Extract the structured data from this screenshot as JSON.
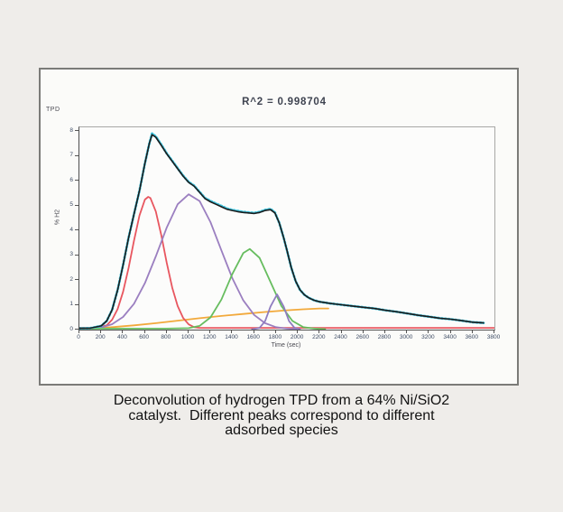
{
  "figure": {
    "corner_label": "TPD",
    "title": "R^2 = 0.998704"
  },
  "caption": {
    "lines": [
      "Deconvolution of hydrogen TPD from a 64% Ni/SiO2",
      "catalyst.  Different peaks correspond to different",
      "adsorbed species"
    ]
  },
  "chart_data": {
    "type": "line",
    "title": "R^2 = 0.998704",
    "xlabel": "Time (sec)",
    "ylabel": "% H2",
    "xlim": [
      0,
      3800
    ],
    "ylim": [
      0,
      8.15
    ],
    "grid": false,
    "legend": "none",
    "x_ticks": [
      0,
      200,
      400,
      600,
      800,
      1000,
      1200,
      1400,
      1600,
      1800,
      2000,
      2200,
      2400,
      2600,
      2800,
      3000,
      3200,
      3400,
      3600,
      3800
    ],
    "y_ticks": [
      0,
      1,
      2,
      3,
      4,
      5,
      6,
      7,
      8
    ],
    "series": [
      {
        "name": "background-orange",
        "color": "#f2a93b",
        "style": "solid",
        "width": 1.8,
        "points": [
          [
            100,
            0.03
          ],
          [
            300,
            0.1
          ],
          [
            500,
            0.17
          ],
          [
            700,
            0.26
          ],
          [
            900,
            0.36
          ],
          [
            1100,
            0.46
          ],
          [
            1300,
            0.55
          ],
          [
            1500,
            0.63
          ],
          [
            1700,
            0.71
          ],
          [
            1900,
            0.78
          ],
          [
            2050,
            0.82
          ],
          [
            2200,
            0.85
          ],
          [
            2280,
            0.85
          ]
        ]
      },
      {
        "name": "peak1-red",
        "color": "#e8565f",
        "style": "solid",
        "width": 1.8,
        "points": [
          [
            0,
            0.07
          ],
          [
            150,
            0.07
          ],
          [
            250,
            0.17
          ],
          [
            300,
            0.4
          ],
          [
            350,
            0.83
          ],
          [
            400,
            1.52
          ],
          [
            450,
            2.48
          ],
          [
            500,
            3.58
          ],
          [
            550,
            4.6
          ],
          [
            600,
            5.24
          ],
          [
            630,
            5.35
          ],
          [
            650,
            5.3
          ],
          [
            700,
            4.76
          ],
          [
            750,
            3.8
          ],
          [
            800,
            2.69
          ],
          [
            850,
            1.69
          ],
          [
            900,
            0.95
          ],
          [
            950,
            0.47
          ],
          [
            1000,
            0.21
          ],
          [
            1050,
            0.1
          ],
          [
            1100,
            0.07
          ],
          [
            1400,
            0.07
          ],
          [
            1800,
            0.07
          ],
          [
            2200,
            0.07
          ],
          [
            2600,
            0.07
          ],
          [
            3000,
            0.07
          ],
          [
            3400,
            0.07
          ],
          [
            3800,
            0.07
          ]
        ]
      },
      {
        "name": "peak2-purple",
        "color": "#9b7fc0",
        "style": "solid",
        "width": 1.8,
        "points": [
          [
            150,
            0.05
          ],
          [
            200,
            0.08
          ],
          [
            300,
            0.22
          ],
          [
            400,
            0.51
          ],
          [
            500,
            1.04
          ],
          [
            600,
            1.87
          ],
          [
            700,
            2.95
          ],
          [
            800,
            4.11
          ],
          [
            900,
            5.05
          ],
          [
            1000,
            5.45
          ],
          [
            1100,
            5.18
          ],
          [
            1200,
            4.33
          ],
          [
            1300,
            3.19
          ],
          [
            1400,
            2.07
          ],
          [
            1500,
            1.18
          ],
          [
            1600,
            0.59
          ],
          [
            1700,
            0.26
          ],
          [
            1800,
            0.1
          ],
          [
            1900,
            0.04
          ],
          [
            2000,
            0.02
          ]
        ]
      },
      {
        "name": "peak3-green",
        "color": "#67bd5f",
        "style": "solid",
        "width": 1.8,
        "points": [
          [
            0,
            0.04
          ],
          [
            400,
            0.04
          ],
          [
            800,
            0.04
          ],
          [
            1000,
            0.06
          ],
          [
            1100,
            0.15
          ],
          [
            1200,
            0.49
          ],
          [
            1300,
            1.21
          ],
          [
            1400,
            2.24
          ],
          [
            1500,
            3.08
          ],
          [
            1560,
            3.25
          ],
          [
            1650,
            2.89
          ],
          [
            1750,
            1.92
          ],
          [
            1850,
            0.95
          ],
          [
            1950,
            0.35
          ],
          [
            2050,
            0.1
          ],
          [
            2150,
            0.04
          ],
          [
            2250,
            0.02
          ]
        ]
      },
      {
        "name": "peak4-small-purple",
        "color": "#8f7cc0",
        "style": "solid",
        "width": 1.8,
        "points": [
          [
            1580,
            0.01
          ],
          [
            1650,
            0.07
          ],
          [
            1700,
            0.34
          ],
          [
            1750,
            0.93
          ],
          [
            1810,
            1.42
          ],
          [
            1870,
            0.93
          ],
          [
            1920,
            0.34
          ],
          [
            1970,
            0.07
          ],
          [
            2020,
            0.02
          ]
        ]
      },
      {
        "name": "measured-data-cyan",
        "color": "#3cc3dd",
        "style": "dotted",
        "width": 2.8,
        "points": [
          [
            0,
            0.05
          ],
          [
            100,
            0.06
          ],
          [
            200,
            0.15
          ],
          [
            250,
            0.35
          ],
          [
            300,
            0.8
          ],
          [
            350,
            1.6
          ],
          [
            400,
            2.6
          ],
          [
            450,
            3.7
          ],
          [
            500,
            4.65
          ],
          [
            550,
            5.6
          ],
          [
            600,
            6.7
          ],
          [
            640,
            7.5
          ],
          [
            665,
            7.9
          ],
          [
            700,
            7.78
          ],
          [
            750,
            7.45
          ],
          [
            800,
            7.1
          ],
          [
            850,
            6.8
          ],
          [
            900,
            6.5
          ],
          [
            950,
            6.2
          ],
          [
            1000,
            5.95
          ],
          [
            1050,
            5.8
          ],
          [
            1100,
            5.55
          ],
          [
            1150,
            5.3
          ],
          [
            1200,
            5.18
          ],
          [
            1250,
            5.08
          ],
          [
            1300,
            4.98
          ],
          [
            1350,
            4.88
          ],
          [
            1400,
            4.82
          ],
          [
            1450,
            4.78
          ],
          [
            1500,
            4.74
          ],
          [
            1550,
            4.72
          ],
          [
            1600,
            4.7
          ],
          [
            1650,
            4.74
          ],
          [
            1700,
            4.82
          ],
          [
            1750,
            4.86
          ],
          [
            1790,
            4.72
          ],
          [
            1830,
            4.3
          ],
          [
            1870,
            3.7
          ],
          [
            1900,
            3.2
          ],
          [
            1940,
            2.5
          ],
          [
            1980,
            1.95
          ],
          [
            2020,
            1.6
          ],
          [
            2060,
            1.4
          ],
          [
            2100,
            1.28
          ],
          [
            2150,
            1.18
          ],
          [
            2200,
            1.12
          ],
          [
            2300,
            1.05
          ],
          [
            2400,
            1.0
          ],
          [
            2500,
            0.95
          ],
          [
            2600,
            0.9
          ],
          [
            2700,
            0.85
          ],
          [
            2800,
            0.78
          ],
          [
            2900,
            0.72
          ],
          [
            3000,
            0.65
          ],
          [
            3100,
            0.58
          ],
          [
            3200,
            0.52
          ],
          [
            3300,
            0.46
          ],
          [
            3400,
            0.42
          ],
          [
            3500,
            0.36
          ],
          [
            3600,
            0.3
          ],
          [
            3700,
            0.27
          ]
        ]
      },
      {
        "name": "overall-fit-black",
        "color": "#1b1b1b",
        "style": "solid",
        "width": 1.6,
        "points": [
          [
            0,
            0.05
          ],
          [
            100,
            0.06
          ],
          [
            200,
            0.15
          ],
          [
            250,
            0.35
          ],
          [
            300,
            0.8
          ],
          [
            350,
            1.6
          ],
          [
            400,
            2.6
          ],
          [
            450,
            3.7
          ],
          [
            500,
            4.65
          ],
          [
            550,
            5.6
          ],
          [
            600,
            6.7
          ],
          [
            640,
            7.5
          ],
          [
            665,
            7.85
          ],
          [
            700,
            7.75
          ],
          [
            750,
            7.42
          ],
          [
            800,
            7.08
          ],
          [
            850,
            6.78
          ],
          [
            900,
            6.48
          ],
          [
            950,
            6.18
          ],
          [
            1000,
            5.93
          ],
          [
            1050,
            5.78
          ],
          [
            1100,
            5.53
          ],
          [
            1150,
            5.28
          ],
          [
            1200,
            5.15
          ],
          [
            1250,
            5.05
          ],
          [
            1300,
            4.95
          ],
          [
            1350,
            4.85
          ],
          [
            1400,
            4.8
          ],
          [
            1450,
            4.75
          ],
          [
            1500,
            4.72
          ],
          [
            1550,
            4.7
          ],
          [
            1600,
            4.68
          ],
          [
            1650,
            4.72
          ],
          [
            1700,
            4.8
          ],
          [
            1750,
            4.83
          ],
          [
            1790,
            4.7
          ],
          [
            1830,
            4.3
          ],
          [
            1870,
            3.7
          ],
          [
            1900,
            3.2
          ],
          [
            1940,
            2.5
          ],
          [
            1980,
            1.95
          ],
          [
            2020,
            1.6
          ],
          [
            2060,
            1.4
          ],
          [
            2100,
            1.28
          ],
          [
            2150,
            1.18
          ],
          [
            2200,
            1.12
          ],
          [
            2300,
            1.05
          ],
          [
            2400,
            1.0
          ],
          [
            2500,
            0.95
          ],
          [
            2600,
            0.9
          ],
          [
            2700,
            0.85
          ],
          [
            2800,
            0.78
          ],
          [
            2900,
            0.72
          ],
          [
            3000,
            0.65
          ],
          [
            3100,
            0.58
          ],
          [
            3200,
            0.52
          ],
          [
            3300,
            0.46
          ],
          [
            3400,
            0.42
          ],
          [
            3500,
            0.36
          ],
          [
            3600,
            0.3
          ],
          [
            3700,
            0.27
          ]
        ]
      }
    ]
  }
}
